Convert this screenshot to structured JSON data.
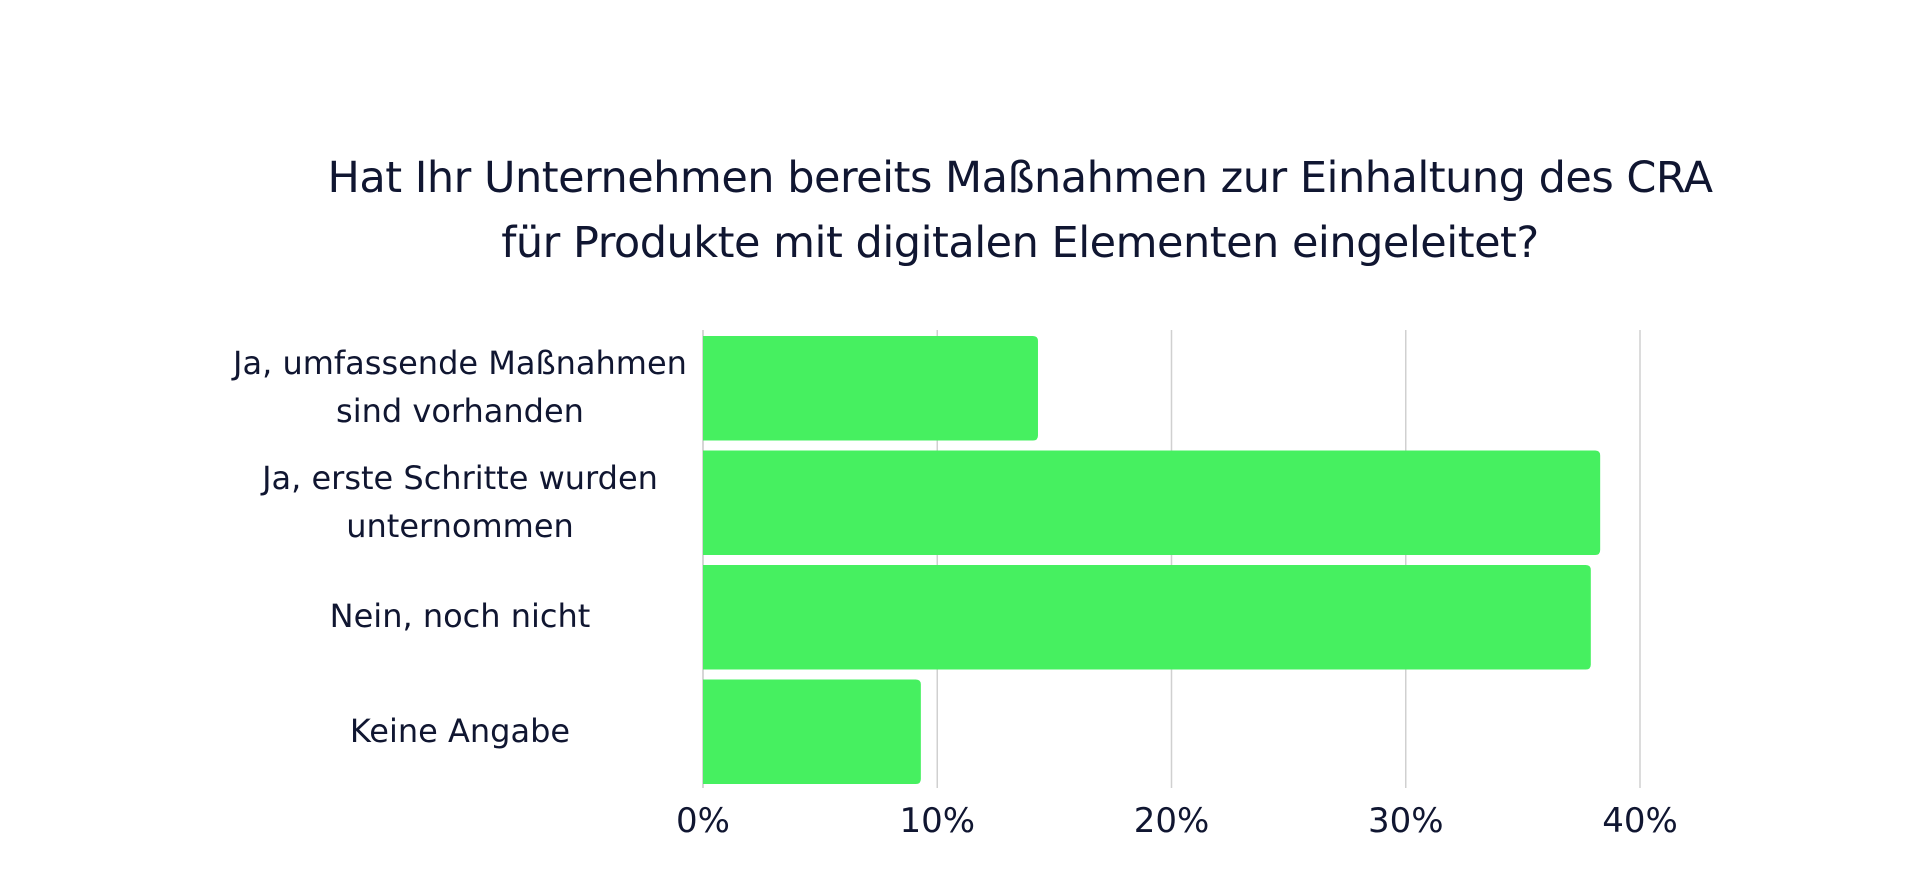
{
  "chart_data": {
    "type": "bar",
    "orientation": "horizontal",
    "title": [
      "Hat Ihr Unternehmen bereits Maßnahmen zur Einhaltung des CRA",
      "für Produkte mit digitalen Elementen eingeleitet?"
    ],
    "categories": [
      [
        "Ja, umfassende Maßnahmen",
        "sind vorhanden"
      ],
      [
        "Ja, erste Schritte wurden",
        "unternommen"
      ],
      [
        "Nein, noch nicht"
      ],
      [
        "Keine Angabe"
      ]
    ],
    "values": [
      14.3,
      38.3,
      37.9,
      9.3
    ],
    "xlim": [
      0,
      40
    ],
    "xticks": [
      0,
      10,
      20,
      30,
      40
    ],
    "tick_labels": [
      "0%",
      "10%",
      "20%",
      "30%",
      "40%"
    ],
    "grid": true,
    "xlabel": "",
    "ylabel": "",
    "bar_color": "#46F060",
    "grid_color": "#D0D0D0",
    "text_color": "#101631"
  }
}
